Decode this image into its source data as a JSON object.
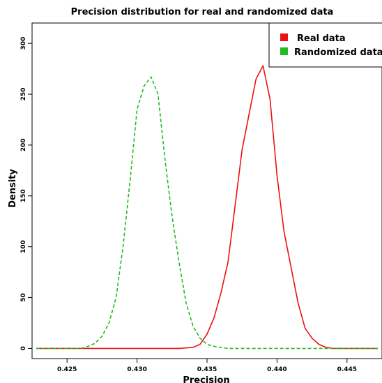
{
  "chart_data": {
    "type": "line",
    "title": "Precision distribution for real and randomized data",
    "xlabel": "Precision",
    "ylabel": "Density",
    "xlim": [
      0.4225,
      0.4475
    ],
    "ylim": [
      -10,
      320
    ],
    "xticks": [
      0.425,
      0.43,
      0.435,
      0.44,
      0.445
    ],
    "xtick_labels": [
      "0.425",
      "0.430",
      "0.435",
      "0.440",
      "0.445"
    ],
    "yticks": [
      0,
      50,
      100,
      150,
      200,
      250,
      300
    ],
    "ytick_labels": [
      "0",
      "50",
      "100",
      "150",
      "200",
      "250",
      "300"
    ],
    "legend_position": "top-right",
    "series": [
      {
        "name": "Real data",
        "color": "#ee1111",
        "style": "solid",
        "x": [
          0.4228,
          0.433,
          0.434,
          0.4345,
          0.435,
          0.4355,
          0.436,
          0.4365,
          0.437,
          0.4375,
          0.438,
          0.4385,
          0.439,
          0.4395,
          0.44,
          0.4405,
          0.441,
          0.4415,
          0.442,
          0.4425,
          0.443,
          0.4435,
          0.444,
          0.4472
        ],
        "values": [
          0,
          0,
          1,
          4,
          14,
          30,
          55,
          85,
          140,
          195,
          230,
          265,
          278,
          245,
          170,
          115,
          80,
          45,
          20,
          10,
          4,
          1,
          0,
          0
        ]
      },
      {
        "name": "Randomized data",
        "color": "#22bb22",
        "style": "dashed",
        "x": [
          0.4228,
          0.426,
          0.4265,
          0.427,
          0.4275,
          0.428,
          0.4285,
          0.429,
          0.4295,
          0.43,
          0.4305,
          0.431,
          0.4315,
          0.432,
          0.4325,
          0.433,
          0.4335,
          0.434,
          0.4345,
          0.435,
          0.4355,
          0.436,
          0.4365,
          0.437,
          0.4472
        ],
        "values": [
          0,
          0,
          2,
          5,
          12,
          25,
          50,
          100,
          165,
          235,
          258,
          267,
          250,
          185,
          130,
          85,
          45,
          22,
          10,
          4,
          2,
          1,
          0,
          0,
          0
        ]
      }
    ]
  }
}
